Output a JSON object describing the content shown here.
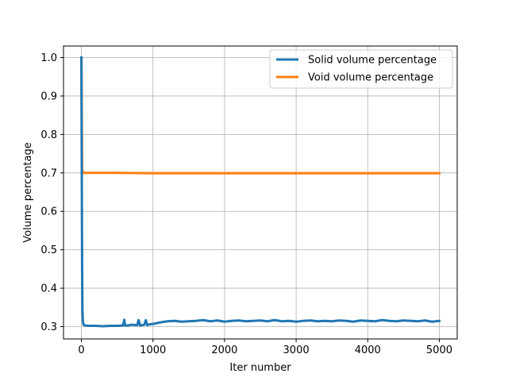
{
  "chart_data": {
    "type": "line",
    "title": "",
    "xlabel": "Iter number",
    "ylabel": "Volume percentage",
    "xlim": [
      -250,
      5250
    ],
    "ylim": [
      0.268,
      1.03
    ],
    "x_ticks": [
      0,
      1000,
      2000,
      3000,
      4000,
      5000
    ],
    "y_ticks": [
      0.3,
      0.4,
      0.5,
      0.6,
      0.7,
      0.8,
      0.9,
      1.0
    ],
    "x_tick_labels": [
      "0",
      "1000",
      "2000",
      "3000",
      "4000",
      "5000"
    ],
    "y_tick_labels": [
      "0.3",
      "0.4",
      "0.5",
      "0.6",
      "0.7",
      "0.8",
      "0.9",
      "1.0"
    ],
    "grid": true,
    "legend_position": "top-right",
    "series": [
      {
        "name": "Solid volume percentage",
        "color": "#1f77b4",
        "x": [
          0,
          5,
          10,
          15,
          20,
          30,
          50,
          100,
          200,
          300,
          400,
          500,
          580,
          600,
          610,
          650,
          700,
          780,
          800,
          820,
          880,
          900,
          920,
          950,
          1000,
          1100,
          1200,
          1300,
          1400,
          1500,
          1600,
          1700,
          1800,
          1900,
          2000,
          2100,
          2200,
          2300,
          2400,
          2500,
          2600,
          2700,
          2800,
          2900,
          3000,
          3100,
          3200,
          3300,
          3400,
          3500,
          3600,
          3700,
          3800,
          3900,
          4000,
          4100,
          4200,
          4300,
          4400,
          4500,
          4600,
          4700,
          4800,
          4900,
          5000
        ],
        "y": [
          1.0,
          0.72,
          0.45,
          0.34,
          0.315,
          0.305,
          0.303,
          0.302,
          0.302,
          0.301,
          0.302,
          0.302,
          0.303,
          0.318,
          0.303,
          0.303,
          0.305,
          0.304,
          0.317,
          0.303,
          0.305,
          0.317,
          0.304,
          0.306,
          0.307,
          0.311,
          0.314,
          0.315,
          0.313,
          0.314,
          0.315,
          0.317,
          0.314,
          0.316,
          0.313,
          0.315,
          0.316,
          0.314,
          0.315,
          0.316,
          0.314,
          0.317,
          0.314,
          0.315,
          0.313,
          0.315,
          0.316,
          0.314,
          0.315,
          0.314,
          0.316,
          0.315,
          0.313,
          0.316,
          0.315,
          0.314,
          0.317,
          0.315,
          0.314,
          0.316,
          0.315,
          0.314,
          0.316,
          0.313,
          0.315
        ]
      },
      {
        "name": "Void volume percentage",
        "color": "#ff7f0e",
        "x": [
          0,
          5,
          10,
          20,
          50,
          100,
          500,
          1000,
          2000,
          3000,
          4000,
          5000
        ],
        "y": [
          1.0,
          0.85,
          0.71,
          0.7,
          0.7,
          0.7,
          0.7,
          0.699,
          0.699,
          0.699,
          0.699,
          0.699
        ]
      }
    ]
  }
}
